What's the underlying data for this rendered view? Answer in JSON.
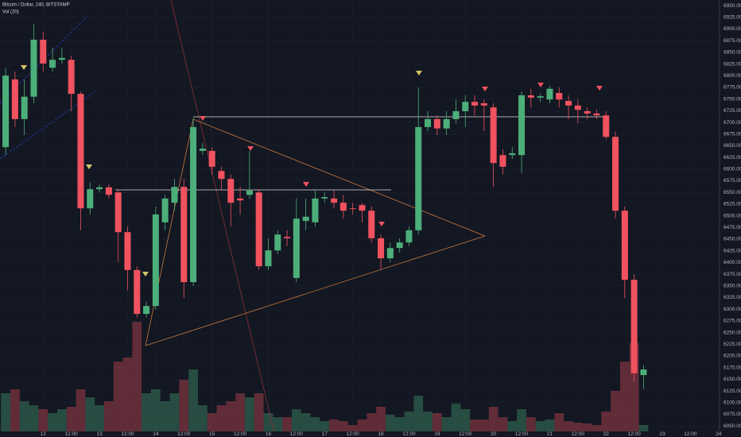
{
  "chart_data": {
    "type": "candlestick",
    "title": "Bitcoin / Dollar, 240, BITSTAMP",
    "subtitle": "Vol (20)",
    "x": [
      0,
      1,
      2,
      3,
      4,
      5,
      6,
      7,
      8,
      9,
      10,
      11,
      12,
      13,
      14,
      15,
      16,
      17,
      18,
      19,
      20,
      21,
      22,
      23,
      24,
      25,
      26,
      27,
      28,
      29,
      30,
      31,
      32,
      33,
      34,
      35,
      36,
      37,
      38,
      39,
      40,
      41,
      42,
      43,
      44,
      45,
      46,
      47,
      48,
      49,
      50,
      51,
      52,
      53,
      54,
      55,
      56,
      57,
      58,
      59,
      60,
      61,
      62,
      63,
      64,
      65,
      66,
      67,
      68
    ],
    "open": [
      6647,
      6792,
      6707,
      6755,
      6877,
      6817,
      6834,
      6834,
      6761,
      6516,
      6557,
      6561,
      6550,
      6465,
      6384,
      6290,
      6307,
      6486,
      6528,
      6562,
      6358,
      6639,
      6639,
      6596,
      6579,
      6537,
      6545,
      6550,
      6392,
      6426,
      6455,
      6367,
      6489,
      6486,
      6537,
      6537,
      6528,
      6516,
      6523,
      6511,
      6452,
      6409,
      6431,
      6443,
      6469,
      6690,
      6707,
      6687,
      6707,
      6724,
      6744,
      6741,
      6732,
      6630,
      6630,
      6630,
      6758,
      6753,
      6749,
      6763,
      6746,
      6736,
      6724,
      6719,
      6715,
      6669,
      6511,
      6363,
      6159
    ],
    "high": [
      6817,
      6809,
      6792,
      6911,
      6894,
      6860,
      6860,
      6843,
      6766,
      6571,
      6567,
      6567,
      6557,
      6477,
      6392,
      6316,
      6520,
      6545,
      6579,
      6579,
      6710,
      6656,
      6647,
      6605,
      6588,
      6562,
      6639,
      6557,
      6452,
      6469,
      6469,
      6537,
      6537,
      6554,
      6550,
      6554,
      6545,
      6528,
      6528,
      6520,
      6460,
      6443,
      6452,
      6477,
      6775,
      6724,
      6715,
      6724,
      6749,
      6758,
      6758,
      6749,
      6741,
      6642,
      6647,
      6766,
      6772,
      6761,
      6778,
      6775,
      6758,
      6749,
      6732,
      6727,
      6724,
      6681,
      6520,
      6375,
      6180
    ],
    "low": [
      6630,
      6690,
      6673,
      6741,
      6809,
      6809,
      6826,
      6724,
      6469,
      6503,
      6550,
      6537,
      6401,
      6341,
      6282,
      6282,
      6299,
      6469,
      6511,
      6324,
      6350,
      6630,
      6588,
      6554,
      6477,
      6503,
      6537,
      6384,
      6384,
      6418,
      6435,
      6358,
      6469,
      6477,
      6528,
      6516,
      6494,
      6503,
      6486,
      6443,
      6384,
      6401,
      6421,
      6435,
      6460,
      6681,
      6673,
      6673,
      6698,
      6690,
      6715,
      6681,
      6562,
      6588,
      6622,
      6591,
      6732,
      6744,
      6741,
      6732,
      6707,
      6698,
      6707,
      6707,
      6664,
      6494,
      6324,
      6146,
      6129
    ],
    "close": [
      6800,
      6707,
      6755,
      6877,
      6826,
      6834,
      6838,
      6761,
      6516,
      6557,
      6561,
      6545,
      6465,
      6384,
      6290,
      6307,
      6503,
      6537,
      6562,
      6358,
      6690,
      6644,
      6605,
      6579,
      6528,
      6533,
      6554,
      6392,
      6426,
      6460,
      6452,
      6494,
      6498,
      6537,
      6540,
      6528,
      6511,
      6515,
      6511,
      6452,
      6409,
      6431,
      6443,
      6469,
      6690,
      6707,
      6687,
      6707,
      6724,
      6744,
      6736,
      6736,
      6613,
      6605,
      6634,
      6758,
      6753,
      6756,
      6772,
      6749,
      6736,
      6727,
      6719,
      6715,
      6669,
      6511,
      6363,
      6163,
      6171
    ],
    "volume": [
      50,
      55,
      40,
      35,
      30,
      25,
      30,
      33,
      55,
      45,
      35,
      40,
      90,
      95,
      140,
      50,
      55,
      40,
      50,
      67,
      80,
      35,
      25,
      35,
      40,
      50,
      45,
      50,
      25,
      20,
      20,
      30,
      25,
      20,
      15,
      17,
      15,
      10,
      17,
      25,
      33,
      23,
      20,
      27,
      47,
      27,
      25,
      20,
      37,
      30,
      17,
      17,
      33,
      20,
      15,
      30,
      20,
      15,
      17,
      25,
      15,
      13,
      12,
      10,
      27,
      53,
      90,
      113,
      10
    ],
    "up_color": "#4caf7a",
    "down_color": "#f0525f",
    "xlim": [
      -0.6,
      76.1
    ],
    "xticks": [
      {
        "value": 4,
        "label": "12"
      },
      {
        "value": 7,
        "label": "12:00"
      },
      {
        "value": 10,
        "label": "13"
      },
      {
        "value": 13,
        "label": "12:00"
      },
      {
        "value": 16,
        "label": "14"
      },
      {
        "value": 19,
        "label": "12:00"
      },
      {
        "value": 22,
        "label": "15"
      },
      {
        "value": 25,
        "label": "12:00"
      },
      {
        "value": 28,
        "label": "16"
      },
      {
        "value": 31,
        "label": "12:00"
      },
      {
        "value": 34,
        "label": "17"
      },
      {
        "value": 37,
        "label": "12:00"
      },
      {
        "value": 40,
        "label": "18"
      },
      {
        "value": 43,
        "label": "12:00"
      },
      {
        "value": 46,
        "label": "19"
      },
      {
        "value": 49,
        "label": "12:00"
      },
      {
        "value": 52,
        "label": "20"
      },
      {
        "value": 55,
        "label": "12:00"
      },
      {
        "value": 58,
        "label": "21"
      },
      {
        "value": 61,
        "label": "12:00"
      },
      {
        "value": 64,
        "label": "22"
      },
      {
        "value": 67,
        "label": "12:00"
      },
      {
        "value": 70,
        "label": "23"
      },
      {
        "value": 73,
        "label": "12:00"
      },
      {
        "value": 76,
        "label": "24"
      }
    ],
    "ylim": [
      6035,
      6962
    ],
    "yticks": [
      {
        "value": 6050,
        "label": "6050.00"
      },
      {
        "value": 6075,
        "label": "6075.00"
      },
      {
        "value": 6100,
        "label": "6100.00"
      },
      {
        "value": 6125,
        "label": "6125.00"
      },
      {
        "value": 6150,
        "label": "6150.00"
      },
      {
        "value": 6175,
        "label": "6175.00"
      },
      {
        "value": 6200,
        "label": "6200.00"
      },
      {
        "value": 6225,
        "label": "6225.00"
      },
      {
        "value": 6250,
        "label": "6250.00"
      },
      {
        "value": 6275,
        "label": "6275.00"
      },
      {
        "value": 6300,
        "label": "6300.00"
      },
      {
        "value": 6325,
        "label": "6325.00"
      },
      {
        "value": 6350,
        "label": "6350.00"
      },
      {
        "value": 6375,
        "label": "6375.00"
      },
      {
        "value": 6400,
        "label": "6400.00"
      },
      {
        "value": 6425,
        "label": "6425.00"
      },
      {
        "value": 6450,
        "label": "6450.00"
      },
      {
        "value": 6475,
        "label": "6475.00"
      },
      {
        "value": 6500,
        "label": "6500.00"
      },
      {
        "value": 6525,
        "label": "6525.00"
      },
      {
        "value": 6550,
        "label": "6550.00"
      },
      {
        "value": 6575,
        "label": "6575.00"
      },
      {
        "value": 6600,
        "label": "6600.00"
      },
      {
        "value": 6625,
        "label": "6625.00"
      },
      {
        "value": 6650,
        "label": "6650.00"
      },
      {
        "value": 6675,
        "label": "6675.00"
      },
      {
        "value": 6700,
        "label": "6700.00"
      },
      {
        "value": 6725,
        "label": "6725.00"
      },
      {
        "value": 6750,
        "label": "6750.00"
      },
      {
        "value": 6775,
        "label": "6775.00"
      },
      {
        "value": 6800,
        "label": "6800.00"
      },
      {
        "value": 6825,
        "label": "6825.00"
      },
      {
        "value": 6850,
        "label": "6850.00"
      },
      {
        "value": 6875,
        "label": "6875.00"
      },
      {
        "value": 6900,
        "label": "6900.00"
      },
      {
        "value": 6925,
        "label": "6925.00"
      },
      {
        "value": 6950,
        "label": "6950.00"
      }
    ],
    "grid": true
  }
}
